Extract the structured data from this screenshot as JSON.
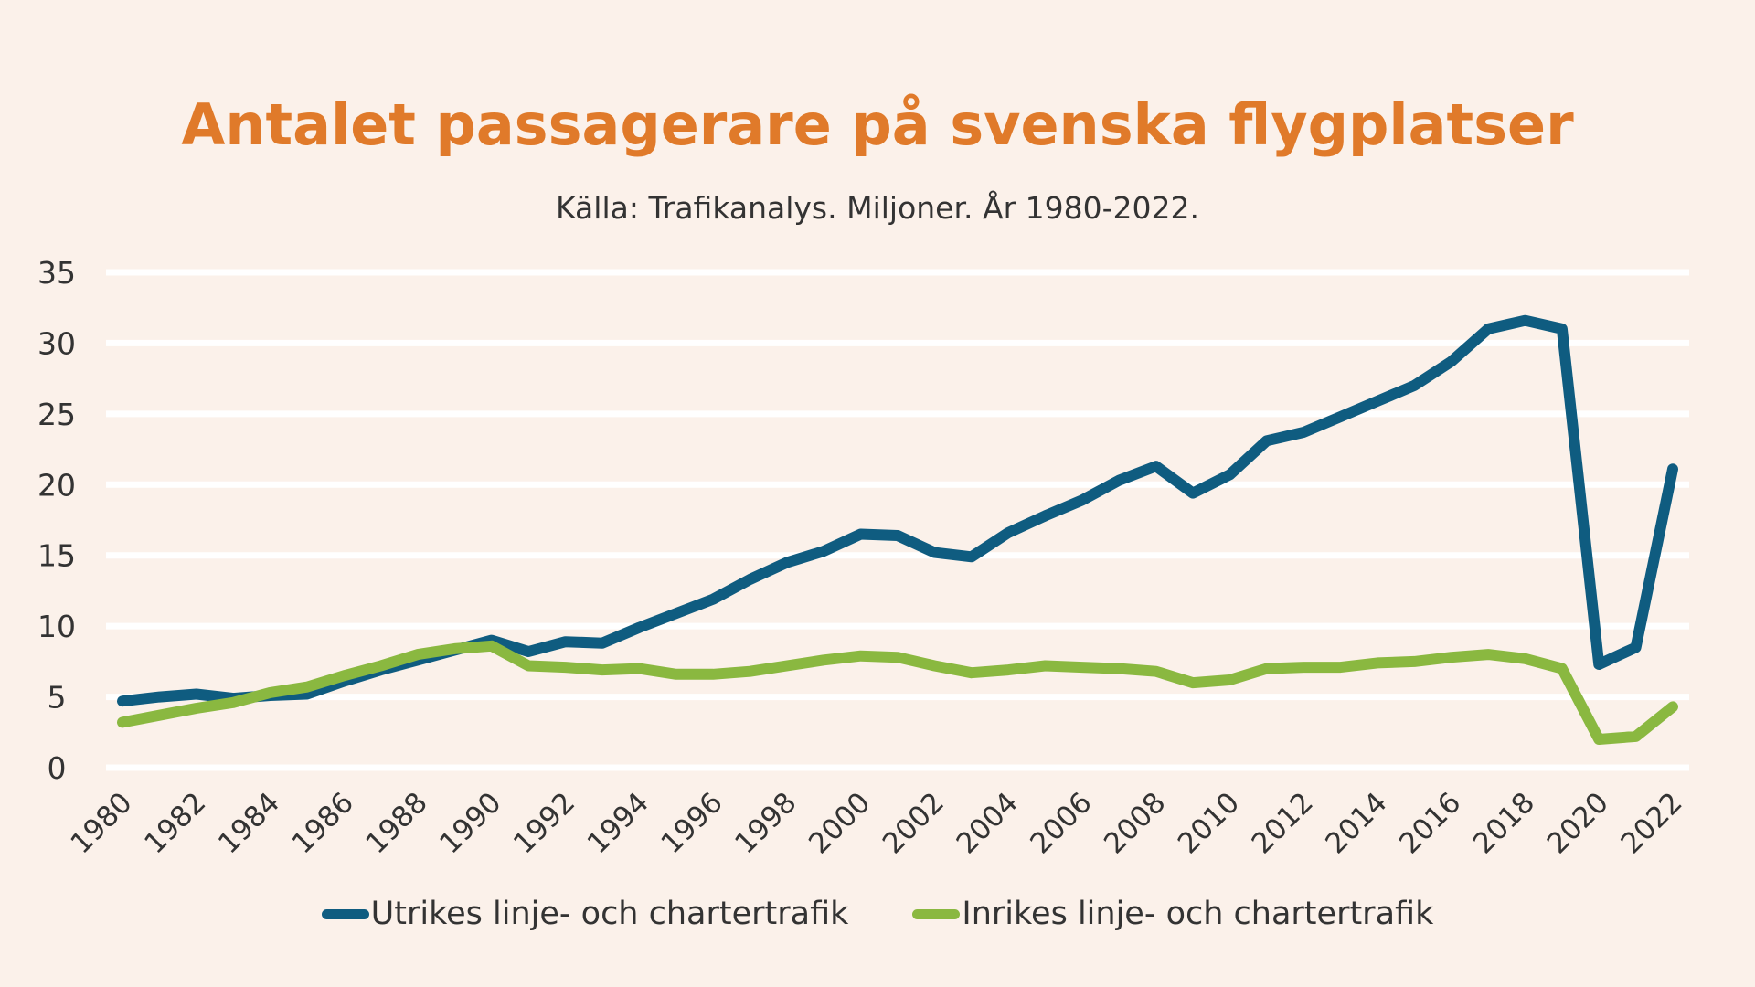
{
  "chart_data": {
    "type": "line",
    "title": "Antalet passagerare på svenska flygplatser",
    "subtitle": "Källa: Trafikanalys. Miljoner. År 1980-2022.",
    "x": [
      1980,
      1981,
      1982,
      1983,
      1984,
      1985,
      1986,
      1987,
      1988,
      1989,
      1990,
      1991,
      1992,
      1993,
      1994,
      1995,
      1996,
      1997,
      1998,
      1999,
      2000,
      2001,
      2002,
      2003,
      2004,
      2005,
      2006,
      2007,
      2008,
      2009,
      2010,
      2011,
      2012,
      2013,
      2014,
      2015,
      2016,
      2017,
      2018,
      2019,
      2020,
      2021,
      2022
    ],
    "x_tick_labels": [
      "1980",
      "1982",
      "1984",
      "1986",
      "1988",
      "1990",
      "1992",
      "1994",
      "1996",
      "1998",
      "2000",
      "2002",
      "2004",
      "2006",
      "2008",
      "2010",
      "2012",
      "2014",
      "2016",
      "2018",
      "2020",
      "2022"
    ],
    "series": [
      {
        "name": "Utrikes linje- och chartertrafik",
        "color": "#0f5c80",
        "values": [
          4.7,
          5.0,
          5.2,
          4.9,
          5.1,
          5.2,
          6.1,
          6.9,
          7.6,
          8.3,
          9.0,
          8.2,
          8.9,
          8.8,
          9.9,
          10.9,
          11.9,
          13.3,
          14.5,
          15.3,
          16.5,
          16.4,
          15.2,
          14.9,
          16.6,
          17.8,
          18.9,
          20.3,
          21.3,
          19.4,
          20.7,
          23.1,
          23.7,
          24.8,
          25.9,
          27.0,
          28.7,
          31.0,
          31.6,
          31.0,
          7.3,
          8.5,
          21.1
        ]
      },
      {
        "name": "Inrikes linje- och chartertrafik",
        "color": "#8ab840",
        "values": [
          3.2,
          3.7,
          4.2,
          4.6,
          5.3,
          5.7,
          6.5,
          7.2,
          8.0,
          8.4,
          8.6,
          7.2,
          7.1,
          6.9,
          7.0,
          6.6,
          6.6,
          6.8,
          7.2,
          7.6,
          7.9,
          7.8,
          7.2,
          6.7,
          6.9,
          7.2,
          7.1,
          7.0,
          6.8,
          6.0,
          6.2,
          7.0,
          7.1,
          7.1,
          7.4,
          7.5,
          7.8,
          8.0,
          7.7,
          7.0,
          2.0,
          2.2,
          4.3
        ]
      }
    ],
    "yticks": [
      0,
      5,
      10,
      15,
      20,
      25,
      30,
      35
    ],
    "ylim": [
      0,
      35
    ],
    "grid": true,
    "legend_position": "bottom",
    "xlabel": "",
    "ylabel": ""
  }
}
